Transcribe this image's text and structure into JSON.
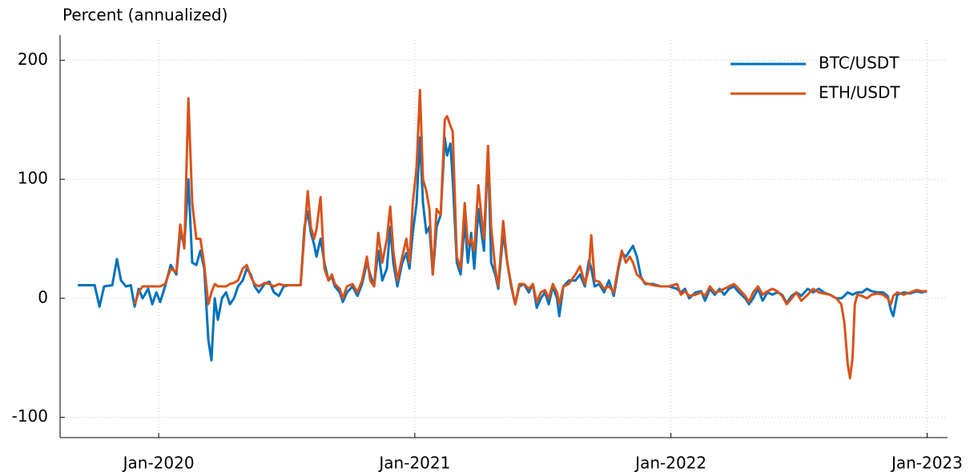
{
  "chart_data": {
    "type": "line",
    "y_label": "Percent (annualized)",
    "x": [
      2019.684,
      2019.75,
      2019.769,
      2019.787,
      2019.819,
      2019.837,
      2019.853,
      2019.872,
      2019.891,
      2019.906,
      2019.922,
      2019.937,
      2019.959,
      2019.975,
      2019.991,
      2020.006,
      2020.025,
      2020.047,
      2020.069,
      2020.084,
      2020.1,
      2020.116,
      2020.131,
      2020.147,
      2020.163,
      2020.178,
      2020.194,
      2020.206,
      2020.219,
      2020.231,
      2020.247,
      2020.263,
      2020.278,
      2020.294,
      2020.31,
      2020.328,
      2020.344,
      2020.36,
      2020.375,
      2020.391,
      2020.413,
      2020.432,
      2020.45,
      2020.469,
      2020.488,
      2020.507,
      2020.525,
      2020.554,
      2020.569,
      2020.582,
      2020.594,
      2020.607,
      2020.616,
      2020.632,
      2020.647,
      2020.663,
      2020.676,
      2020.688,
      2020.707,
      2020.719,
      2020.735,
      2020.757,
      2020.776,
      2020.794,
      2020.813,
      2020.826,
      2020.841,
      2020.857,
      2020.873,
      2020.891,
      2020.904,
      2020.916,
      2020.932,
      2020.951,
      2020.967,
      2020.979,
      2020.992,
      2021.007,
      2021.02,
      2021.032,
      2021.045,
      2021.057,
      2021.07,
      2021.085,
      2021.101,
      2021.117,
      2021.126,
      2021.139,
      2021.148,
      2021.164,
      2021.179,
      2021.195,
      2021.207,
      2021.22,
      2021.232,
      2021.248,
      2021.257,
      2021.27,
      2021.286,
      2021.298,
      2021.314,
      2021.326,
      2021.345,
      2021.361,
      2021.376,
      2021.392,
      2021.408,
      2021.426,
      2021.445,
      2021.461,
      2021.476,
      2021.492,
      2021.508,
      2021.523,
      2021.539,
      2021.555,
      2021.564,
      2021.58,
      2021.601,
      2021.627,
      2021.645,
      2021.664,
      2021.68,
      2021.689,
      2021.702,
      2021.72,
      2021.739,
      2021.758,
      2021.777,
      2021.795,
      2021.808,
      2021.824,
      2021.839,
      2021.852,
      2021.867,
      2021.883,
      2021.899,
      2021.93,
      2021.961,
      2021.992,
      2022.024,
      2022.039,
      2022.055,
      2022.071,
      2022.096,
      2022.118,
      2022.133,
      2022.152,
      2022.171,
      2022.19,
      2022.208,
      2022.227,
      2022.246,
      2022.265,
      2022.29,
      2022.305,
      2022.321,
      2022.34,
      2022.358,
      2022.377,
      2022.396,
      2022.415,
      2022.434,
      2022.452,
      2022.471,
      2022.49,
      2022.509,
      2022.534,
      2022.555,
      2022.577,
      2022.596,
      2022.621,
      2022.646,
      2022.665,
      2022.677,
      2022.69,
      2022.699,
      2022.709,
      2022.718,
      2022.728,
      2022.746,
      2022.765,
      2022.784,
      2022.806,
      2022.828,
      2022.846,
      2022.859,
      2022.868,
      2022.884,
      2022.909,
      2022.934,
      2022.959,
      2022.978,
      2023.0
    ],
    "series": [
      {
        "name": "BTC/USDT",
        "color": "#0072bd",
        "values": [
          11,
          11,
          -7,
          10,
          11,
          33,
          15,
          10,
          11,
          -7,
          8,
          0,
          8,
          -5,
          5,
          -3,
          10,
          28,
          20,
          55,
          45,
          100,
          30,
          28,
          40,
          25,
          -35,
          -52,
          0,
          -18,
          0,
          5,
          -5,
          0,
          10,
          15,
          25,
          20,
          10,
          5,
          12,
          14,
          5,
          2,
          10,
          11,
          11,
          11,
          60,
          73,
          55,
          45,
          35,
          50,
          30,
          15,
          18,
          10,
          5,
          -3,
          5,
          10,
          2,
          12,
          30,
          20,
          10,
          40,
          15,
          25,
          60,
          30,
          10,
          30,
          38,
          25,
          55,
          80,
          135,
          80,
          55,
          60,
          20,
          60,
          70,
          135,
          120,
          130,
          100,
          30,
          20,
          65,
          30,
          55,
          25,
          75,
          60,
          40,
          125,
          30,
          20,
          8,
          55,
          30,
          10,
          -5,
          10,
          12,
          5,
          12,
          -8,
          0,
          5,
          -5,
          10,
          0,
          -15,
          10,
          15,
          15,
          20,
          10,
          32,
          25,
          10,
          12,
          5,
          15,
          2,
          25,
          38,
          35,
          40,
          44,
          35,
          18,
          12,
          12,
          10,
          10,
          8,
          5,
          8,
          0,
          5,
          6,
          -2,
          8,
          3,
          8,
          3,
          8,
          10,
          5,
          0,
          -5,
          0,
          8,
          -2,
          5,
          3,
          5,
          3,
          -4,
          2,
          5,
          2,
          8,
          5,
          8,
          5,
          3,
          0,
          0,
          2,
          5,
          4,
          3,
          4,
          5,
          5,
          8,
          6,
          5,
          5,
          2,
          -10,
          -15,
          3,
          5,
          4,
          6,
          5,
          6
        ]
      },
      {
        "name": "ETH/USDT",
        "color": "#d95319",
        "values": [
          null,
          null,
          null,
          null,
          null,
          null,
          null,
          null,
          null,
          -5,
          5,
          10,
          10,
          10,
          10,
          10,
          12,
          25,
          22,
          62,
          42,
          168,
          80,
          50,
          50,
          28,
          -5,
          5,
          12,
          10,
          10,
          10,
          12,
          13,
          15,
          25,
          28,
          18,
          12,
          10,
          13,
          12,
          10,
          12,
          11,
          11,
          11,
          11,
          55,
          90,
          60,
          50,
          58,
          85,
          25,
          15,
          20,
          12,
          8,
          0,
          10,
          12,
          5,
          15,
          35,
          15,
          10,
          55,
          30,
          50,
          77,
          40,
          15,
          35,
          50,
          30,
          80,
          110,
          175,
          100,
          90,
          75,
          20,
          75,
          70,
          150,
          153,
          145,
          140,
          35,
          25,
          80,
          45,
          50,
          40,
          95,
          75,
          50,
          128,
          60,
          25,
          10,
          65,
          30,
          12,
          -5,
          12,
          12,
          8,
          12,
          -3,
          5,
          7,
          0,
          12,
          5,
          -5,
          10,
          12,
          20,
          27,
          12,
          25,
          53,
          15,
          14,
          8,
          10,
          5,
          27,
          40,
          30,
          35,
          30,
          20,
          17,
          13,
          11,
          10,
          10,
          12,
          3,
          6,
          2,
          3,
          5,
          2,
          10,
          5,
          6,
          8,
          10,
          12,
          8,
          2,
          -3,
          5,
          10,
          3,
          6,
          8,
          6,
          2,
          -5,
          0,
          5,
          -2,
          3,
          8,
          5,
          4,
          3,
          0,
          -5,
          -20,
          -55,
          -67,
          -50,
          -5,
          3,
          2,
          0,
          3,
          4,
          3,
          0,
          -5,
          2,
          5,
          3,
          5,
          7,
          6,
          6
        ]
      }
    ],
    "xlim": [
      2019.615,
      2023.08
    ],
    "xticks": [
      {
        "value": 2020,
        "label": "Jan-2020"
      },
      {
        "value": 2021,
        "label": "Jan-2021"
      },
      {
        "value": 2022,
        "label": "Jan-2022"
      },
      {
        "value": 2023,
        "label": "Jan-2023"
      }
    ],
    "ylim": [
      -117,
      217
    ],
    "yticks": [
      -100,
      0,
      100,
      200
    ],
    "grid": true,
    "legend": "upper-right"
  }
}
